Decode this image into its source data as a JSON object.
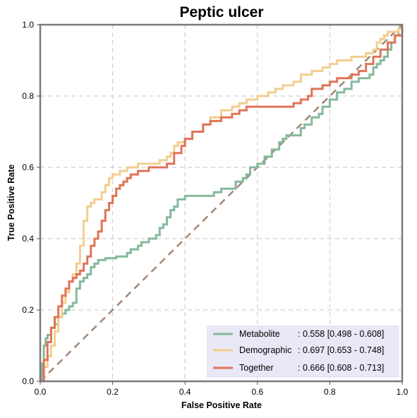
{
  "chart_data": {
    "type": "line",
    "title": "Peptic ulcer",
    "xlabel": "False Positive Rate",
    "ylabel": "True Positive Rate",
    "xlim": [
      0,
      1
    ],
    "ylim": [
      0,
      1
    ],
    "xticks": [
      "0.0",
      "0.2",
      "0.4",
      "0.6",
      "0.8",
      "1.0"
    ],
    "yticks": [
      "0.0",
      "0.2",
      "0.4",
      "0.6",
      "0.8",
      "1.0"
    ],
    "grid": true,
    "legend_position": "lower-right",
    "reference_line": {
      "x": [
        0,
        1
      ],
      "y": [
        0,
        1
      ],
      "color": "#a68a7b",
      "style": "dashed"
    },
    "series": [
      {
        "name": "Metabolite",
        "auc_text": ": 0.558 [0.498 - 0.608]",
        "color": "#86b99c",
        "x": [
          0,
          0.005,
          0.01,
          0.015,
          0.02,
          0.03,
          0.04,
          0.05,
          0.06,
          0.07,
          0.08,
          0.09,
          0.1,
          0.11,
          0.12,
          0.13,
          0.14,
          0.15,
          0.16,
          0.18,
          0.2,
          0.21,
          0.24,
          0.25,
          0.27,
          0.28,
          0.3,
          0.32,
          0.33,
          0.34,
          0.35,
          0.36,
          0.37,
          0.38,
          0.4,
          0.47,
          0.48,
          0.5,
          0.54,
          0.56,
          0.57,
          0.58,
          0.6,
          0.62,
          0.64,
          0.66,
          0.67,
          0.68,
          0.7,
          0.72,
          0.73,
          0.75,
          0.77,
          0.78,
          0.8,
          0.82,
          0.84,
          0.86,
          0.88,
          0.9,
          0.91,
          0.92,
          0.93,
          0.94,
          0.95,
          0.96,
          0.97,
          0.98,
          0.99,
          1.0
        ],
        "y": [
          0,
          0.05,
          0.1,
          0.12,
          0.13,
          0.15,
          0.16,
          0.18,
          0.19,
          0.2,
          0.21,
          0.22,
          0.26,
          0.28,
          0.29,
          0.3,
          0.32,
          0.33,
          0.34,
          0.345,
          0.345,
          0.35,
          0.36,
          0.37,
          0.38,
          0.39,
          0.4,
          0.41,
          0.43,
          0.44,
          0.46,
          0.48,
          0.49,
          0.51,
          0.52,
          0.52,
          0.53,
          0.54,
          0.56,
          0.57,
          0.58,
          0.6,
          0.61,
          0.63,
          0.65,
          0.67,
          0.68,
          0.69,
          0.69,
          0.71,
          0.72,
          0.74,
          0.75,
          0.77,
          0.79,
          0.81,
          0.82,
          0.84,
          0.85,
          0.85,
          0.86,
          0.88,
          0.89,
          0.9,
          0.91,
          0.93,
          0.95,
          0.97,
          0.99,
          1.0
        ]
      },
      {
        "name": "Demographic",
        "auc_text": ": 0.697 [0.653 - 0.748]",
        "color": "#f2ce8f",
        "x": [
          0,
          0.01,
          0.02,
          0.03,
          0.04,
          0.05,
          0.06,
          0.07,
          0.08,
          0.09,
          0.1,
          0.11,
          0.12,
          0.13,
          0.14,
          0.15,
          0.16,
          0.17,
          0.18,
          0.19,
          0.2,
          0.22,
          0.24,
          0.27,
          0.3,
          0.33,
          0.35,
          0.36,
          0.37,
          0.38,
          0.4,
          0.42,
          0.45,
          0.47,
          0.5,
          0.53,
          0.55,
          0.57,
          0.6,
          0.63,
          0.65,
          0.67,
          0.7,
          0.72,
          0.75,
          0.78,
          0.8,
          0.82,
          0.84,
          0.86,
          0.88,
          0.9,
          0.92,
          0.93,
          0.94,
          0.95,
          0.96,
          0.97,
          0.98,
          0.99,
          1.0
        ],
        "y": [
          0,
          0.04,
          0.07,
          0.1,
          0.14,
          0.18,
          0.22,
          0.25,
          0.28,
          0.3,
          0.33,
          0.38,
          0.45,
          0.49,
          0.5,
          0.51,
          0.51,
          0.53,
          0.55,
          0.57,
          0.58,
          0.59,
          0.6,
          0.61,
          0.61,
          0.62,
          0.63,
          0.64,
          0.66,
          0.67,
          0.68,
          0.7,
          0.72,
          0.74,
          0.76,
          0.77,
          0.78,
          0.79,
          0.8,
          0.81,
          0.82,
          0.83,
          0.84,
          0.86,
          0.87,
          0.88,
          0.89,
          0.9,
          0.9,
          0.91,
          0.91,
          0.92,
          0.93,
          0.95,
          0.96,
          0.97,
          0.98,
          0.98,
          0.98,
          0.99,
          1.0
        ]
      },
      {
        "name": "Together",
        "auc_text": ": 0.666 [0.608 - 0.713]",
        "color": "#e07458",
        "x": [
          0,
          0.01,
          0.02,
          0.03,
          0.04,
          0.05,
          0.06,
          0.07,
          0.08,
          0.09,
          0.1,
          0.11,
          0.12,
          0.13,
          0.14,
          0.15,
          0.16,
          0.17,
          0.18,
          0.19,
          0.2,
          0.21,
          0.22,
          0.23,
          0.24,
          0.25,
          0.27,
          0.3,
          0.33,
          0.35,
          0.37,
          0.39,
          0.4,
          0.42,
          0.45,
          0.47,
          0.5,
          0.53,
          0.55,
          0.57,
          0.6,
          0.65,
          0.7,
          0.72,
          0.74,
          0.75,
          0.78,
          0.8,
          0.82,
          0.84,
          0.86,
          0.88,
          0.9,
          0.92,
          0.94,
          0.96,
          0.98,
          1.0
        ],
        "y": [
          0,
          0.06,
          0.11,
          0.15,
          0.18,
          0.21,
          0.24,
          0.26,
          0.28,
          0.29,
          0.3,
          0.31,
          0.33,
          0.35,
          0.38,
          0.4,
          0.42,
          0.45,
          0.48,
          0.5,
          0.52,
          0.54,
          0.55,
          0.56,
          0.57,
          0.58,
          0.59,
          0.6,
          0.6,
          0.61,
          0.64,
          0.66,
          0.68,
          0.7,
          0.72,
          0.73,
          0.74,
          0.75,
          0.76,
          0.77,
          0.77,
          0.77,
          0.78,
          0.79,
          0.8,
          0.82,
          0.83,
          0.84,
          0.85,
          0.85,
          0.86,
          0.87,
          0.89,
          0.91,
          0.93,
          0.95,
          0.97,
          1.0
        ]
      }
    ]
  }
}
